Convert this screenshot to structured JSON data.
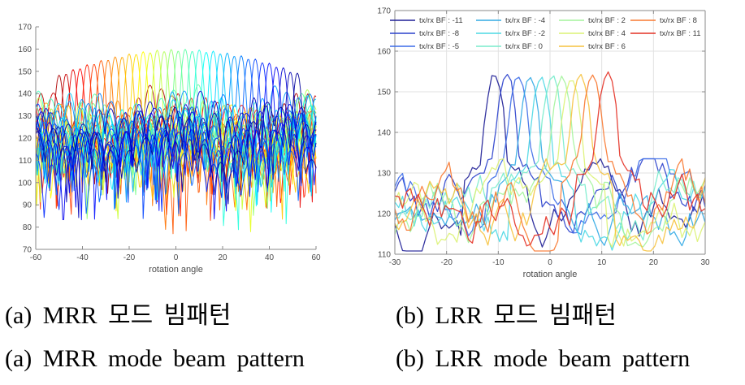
{
  "background": "#ffffff",
  "captions": {
    "mrr": {
      "korean": "(a) MRR 모드 빔패턴",
      "english": "(a) MRR mode beam pattern"
    },
    "lrr": {
      "korean": "(b) LRR 모드 빔패턴",
      "english": "(b) LRR mode beam pattern"
    }
  },
  "chart_data": [
    {
      "id": "mrr",
      "type": "line",
      "title": "",
      "xlabel": "rotation angle",
      "ylabel": "",
      "xlim": [
        -60,
        60
      ],
      "ylim": [
        70,
        170
      ],
      "xticks": [
        -60,
        -40,
        -20,
        0,
        20,
        40,
        60
      ],
      "yticks": [
        70,
        80,
        90,
        100,
        110,
        120,
        130,
        140,
        150,
        160,
        170
      ],
      "grid": false,
      "box": false,
      "legend": null,
      "description": "MRR mode: ~35 overlapping scanned beam patterns; main-lobe peaks rise from ~148 dB at the scan edges to ~160 dB near the center; sidelobe clutter fills 100-142 dB with occasional nulls down to 80-95 dB; colormap runs red at negative rotation angles to dark blue at positive angles (reversed jet).",
      "beams": {
        "angles": [
          -50,
          -47,
          -44,
          -41,
          -38,
          -35,
          -32,
          -29,
          -26,
          -23,
          -20,
          -17,
          -14,
          -11,
          -8,
          -5,
          -2,
          1,
          4,
          7,
          10,
          13,
          16,
          19,
          22,
          25,
          28,
          31,
          34,
          37,
          40,
          43,
          46,
          49,
          52
        ],
        "peaks": [
          148.3,
          148.8,
          150.8,
          151.2,
          153.0,
          153.2,
          154.9,
          155.0,
          156.5,
          156.4,
          157.8,
          157.6,
          158.8,
          158.4,
          159.5,
          158.9,
          159.8,
          159.1,
          159.9,
          159.0,
          159.6,
          158.6,
          159.1,
          157.9,
          158.2,
          156.8,
          157.0,
          155.5,
          155.5,
          153.9,
          153.7,
          151.9,
          151.6,
          149.6,
          149.2
        ],
        "mainlobe_halfwidth_deg": 3.4,
        "mainlobe_rolloff_db_per_deg2": 4.1,
        "sidelobe_level_range": [
          100,
          142
        ],
        "null_dip_range": [
          80,
          95
        ],
        "colormap": "jet-reversed",
        "sample_step_deg": 0.4,
        "seed": 7
      }
    },
    {
      "id": "lrr",
      "type": "line",
      "title": "",
      "xlabel": "rotation angle",
      "ylabel": "",
      "xlim": [
        -30,
        30
      ],
      "ylim": [
        110,
        170
      ],
      "xticks": [
        -30,
        -20,
        -10,
        0,
        10,
        20,
        30
      ],
      "yticks": [
        110,
        120,
        130,
        140,
        150,
        160,
        170
      ],
      "grid": true,
      "box": true,
      "legend": {
        "position": "top",
        "rows": 3,
        "columns": 4,
        "order": "column-major"
      },
      "description": "LRR mode: 11 beamformed patterns, each with a narrow main lobe of ~153-155 dB near its tx/rx BF steering angle, over a jagged sidelobe floor of 111-133 dB.",
      "noise_floor_range": [
        111,
        133
      ],
      "sample_step_deg": 0.75,
      "seed": 13,
      "series": [
        {
          "label": "tx/rx BF : -11",
          "bf": -11,
          "color": "#1e1e96",
          "peak_angle": -10.7,
          "peak_value": 154.6
        },
        {
          "label": "tx/rx BF : -8",
          "bf": -8,
          "color": "#2a40cc",
          "peak_angle": -8.4,
          "peak_value": 154.9
        },
        {
          "label": "tx/rx BF : -5",
          "bf": -5,
          "color": "#3b6ce8",
          "peak_angle": -6.1,
          "peak_value": 154.3
        },
        {
          "label": "tx/rx BF : -4",
          "bf": -4,
          "color": "#32aae4",
          "peak_angle": -3.9,
          "peak_value": 153.8
        },
        {
          "label": "tx/rx BF : -2",
          "bf": -2,
          "color": "#4cd8e4",
          "peak_angle": -1.7,
          "peak_value": 153.6
        },
        {
          "label": "tx/rx BF : 0",
          "bf": 0,
          "color": "#78eccc",
          "peak_angle": 0.4,
          "peak_value": 153.9
        },
        {
          "label": "tx/rx BF : 2",
          "bf": 2,
          "color": "#a4f49c",
          "peak_angle": 2.3,
          "peak_value": 154.1
        },
        {
          "label": "tx/rx BF : 4",
          "bf": 4,
          "color": "#dcf274",
          "peak_angle": 4.1,
          "peak_value": 153.6
        },
        {
          "label": "tx/rx BF : 6",
          "bf": 6,
          "color": "#f6c23e",
          "peak_angle": 5.9,
          "peak_value": 154.3
        },
        {
          "label": "tx/rx BF : 8",
          "bf": 8,
          "color": "#f87830",
          "peak_angle": 8.2,
          "peak_value": 154.8
        },
        {
          "label": "tx/rx BF : 11",
          "bf": 11,
          "color": "#e43024",
          "peak_angle": 11.1,
          "peak_value": 154.9
        }
      ]
    }
  ],
  "axis_style": {
    "tick_label_color": "#4a4a4a",
    "axis_color": "#8a8a8a",
    "grid_color": "#e2e2e2"
  }
}
